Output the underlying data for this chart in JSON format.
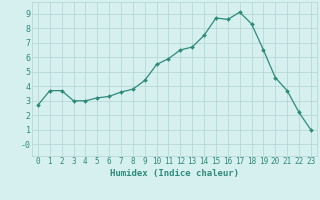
{
  "x": [
    0,
    1,
    2,
    3,
    4,
    5,
    6,
    7,
    8,
    9,
    10,
    11,
    12,
    13,
    14,
    15,
    16,
    17,
    18,
    19,
    20,
    21,
    22,
    23
  ],
  "y": [
    2.7,
    3.7,
    3.7,
    3.0,
    3.0,
    3.2,
    3.3,
    3.6,
    3.8,
    4.4,
    5.5,
    5.9,
    6.5,
    6.7,
    7.5,
    8.7,
    8.6,
    9.1,
    8.3,
    6.5,
    4.6,
    3.7,
    2.2,
    1.0
  ],
  "line_color": "#2e8b7a",
  "marker": "D",
  "marker_size": 2.0,
  "bg_color": "#d6efef",
  "grid_color": "#b8d8d8",
  "xlabel": "Humidex (Indice chaleur)",
  "xlim": [
    -0.5,
    23.5
  ],
  "ylim": [
    -0.8,
    9.8
  ],
  "yticks": [
    0,
    1,
    2,
    3,
    4,
    5,
    6,
    7,
    8,
    9
  ],
  "ytick_labels": [
    "-0",
    "1",
    "2",
    "3",
    "4",
    "5",
    "6",
    "7",
    "8",
    "9"
  ],
  "xticks": [
    0,
    1,
    2,
    3,
    4,
    5,
    6,
    7,
    8,
    9,
    10,
    11,
    12,
    13,
    14,
    15,
    16,
    17,
    18,
    19,
    20,
    21,
    22,
    23
  ],
  "font_color": "#2e8b7a",
  "xlabel_fontsize": 6.5,
  "tick_fontsize": 5.5
}
